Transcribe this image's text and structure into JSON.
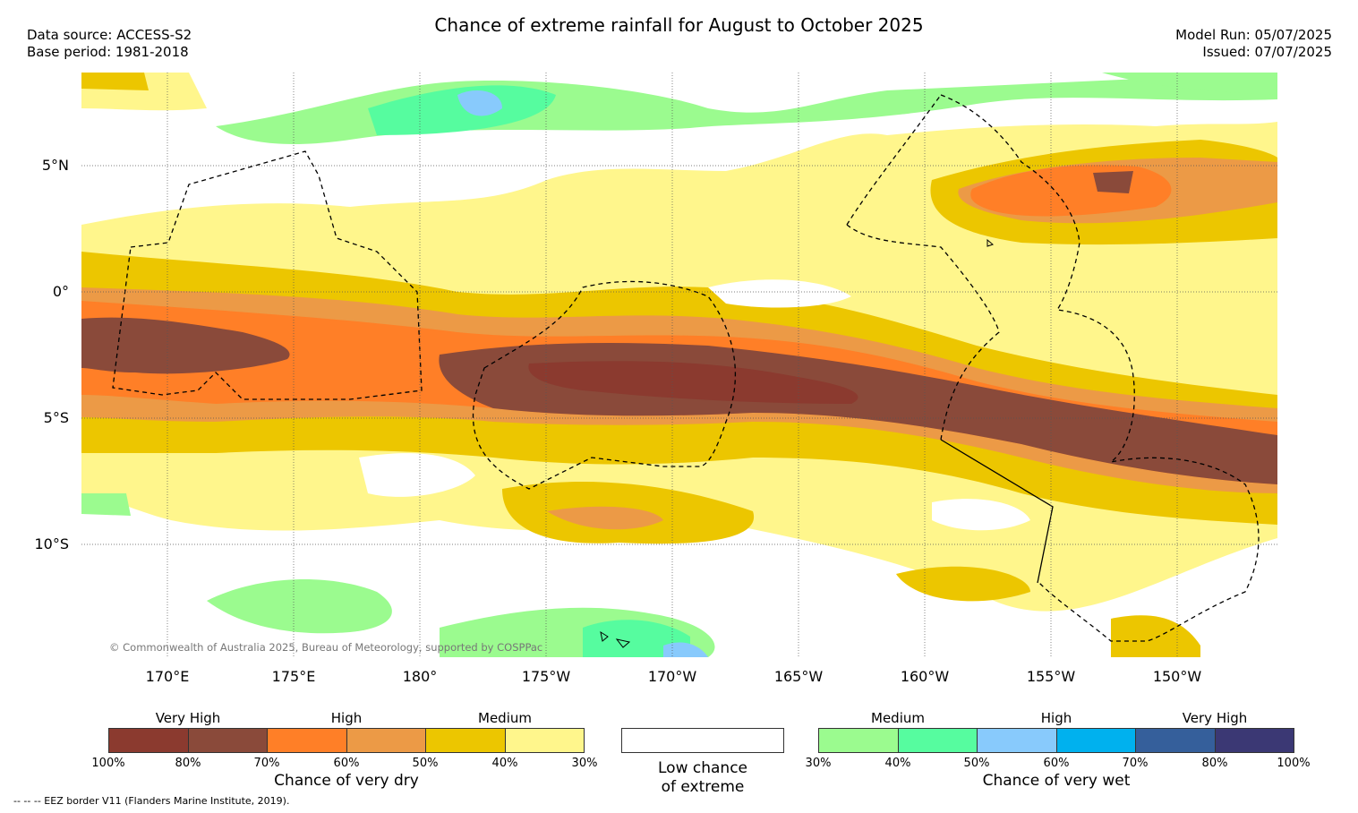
{
  "title": "Chance of extreme rainfall for August to October 2025",
  "header_left": {
    "line1": "Data source: ACCESS-S2",
    "line2": "Base period: 1981-2018"
  },
  "header_right": {
    "line1": "Model Run: 05/07/2025",
    "line2": "Issued: 07/07/2025"
  },
  "lat_labels": [
    "5°N",
    "0°",
    "5°S",
    "10°S"
  ],
  "lon_labels": [
    "170°E",
    "175°E",
    "180°",
    "175°W",
    "170°W",
    "165°W",
    "160°W",
    "155°W",
    "150°W"
  ],
  "copyright": "© Commonwealth of Australia 2025, Bureau of Meteorology, supported by COSPPac",
  "legend_dry": {
    "group_labels": [
      "Very High",
      "High",
      "Medium"
    ],
    "ticks": [
      "100%",
      "80%",
      "70%",
      "60%",
      "50%",
      "40%",
      "30%"
    ],
    "colors": [
      "#8b3a2f",
      "#8a4a3a",
      "#ff7f27",
      "#ec9a46",
      "#ecc600",
      "#fff68c"
    ],
    "caption": "Chance of very dry"
  },
  "legend_low": {
    "line1": "Low chance",
    "line2": "of extreme",
    "color": "#ffffff"
  },
  "legend_wet": {
    "group_labels": [
      "Medium",
      "High",
      "Very High"
    ],
    "ticks": [
      "30%",
      "40%",
      "50%",
      "60%",
      "70%",
      "80%",
      "100%"
    ],
    "colors": [
      "#9bfb8f",
      "#56fc9f",
      "#88cafc",
      "#00b1ee",
      "#355f9b",
      "#3b3874"
    ],
    "caption": "Chance of very wet"
  },
  "footnote": "-- -- -- EEZ border V11 (Flanders Marine Institute, 2019)."
}
